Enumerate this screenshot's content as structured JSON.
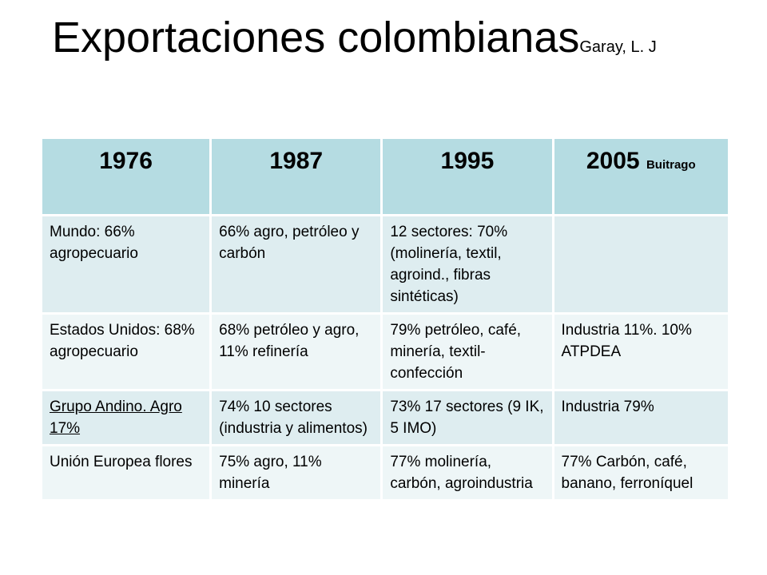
{
  "title": {
    "main": "Exportaciones colombianas",
    "author": "Garay, L. J"
  },
  "table": {
    "headers": [
      {
        "year": "1976",
        "note": ""
      },
      {
        "year": "1987",
        "note": ""
      },
      {
        "year": "1995",
        "note": ""
      },
      {
        "year": "2005",
        "note": "Buitrago"
      }
    ],
    "rows": [
      {
        "cells": [
          "Mundo: 66% agropecuario",
          "66% agro, petróleo y carbón",
          "12 sectores: 70% (molinería, textil, agroind., fibras sintéticas)",
          ""
        ]
      },
      {
        "cells": [
          "Estados Unidos: 68% agropecuario",
          "68% petróleo y agro, 11% refinería",
          "79% petróleo, café, minería, textil-confección",
          "Industria 11%. 10% ATPDEA"
        ]
      },
      {
        "cells": [
          "Grupo Andino. Agro 17%",
          "74% 10 sectores (industria y alimentos)",
          "73% 17 sectores (9 IK, 5 IMO)",
          "Industria 79%"
        ]
      },
      {
        "cells": [
          "Unión Europea flores",
          "75% agro, 11% minería",
          "77% molinería, carbón, agroindustria",
          "77% Carbón, café, banano, ferroníquel"
        ]
      }
    ]
  }
}
